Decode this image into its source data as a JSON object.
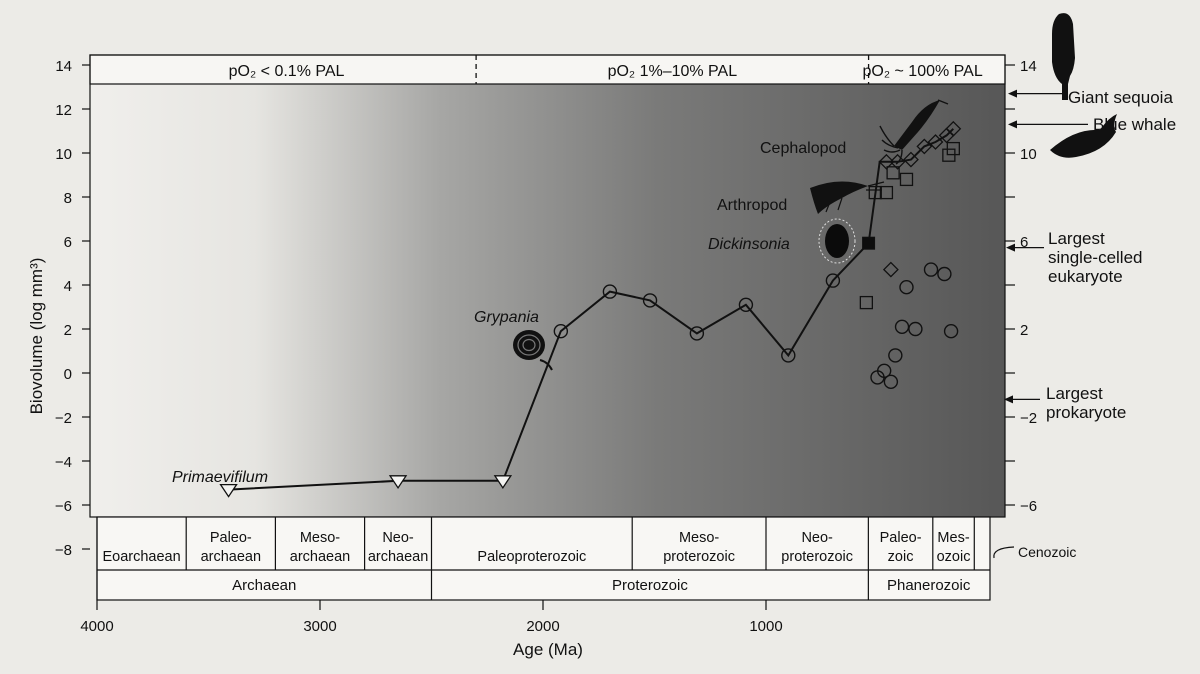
{
  "chart_data": {
    "type": "scatter",
    "title": "",
    "xlabel": "Age (Ma)",
    "ylabel": "Biovolume (log mm³)",
    "xlim": [
      4000,
      100
    ],
    "ylim": [
      -8,
      14
    ],
    "x_ticks": [
      "4000",
      "3000",
      "2000",
      "1000"
    ],
    "y_ticks": [
      "14",
      "12",
      "10",
      "8",
      "6",
      "4",
      "2",
      "0",
      "−2",
      "−4",
      "−6",
      "−8"
    ],
    "right_ticks": [
      "14",
      "10",
      "6",
      "2",
      "−2",
      "−6"
    ],
    "oxygen_bands": [
      {
        "label": "pO₂ < 0.1% PAL",
        "from": 4000,
        "to": 2300
      },
      {
        "label": "pO₂ 1%–10% PAL",
        "from": 2300,
        "to": 540
      },
      {
        "label": "pO₂ ~ 100% PAL",
        "from": 540,
        "to": 100
      }
    ],
    "series": [
      {
        "marker": "circle",
        "points": [
          [
            1920,
            1.9
          ],
          [
            1700,
            3.7
          ],
          [
            1520,
            3.3
          ],
          [
            1310,
            1.8
          ],
          [
            1090,
            3.1
          ],
          [
            900,
            0.8
          ],
          [
            700,
            4.2
          ],
          [
            370,
            3.9
          ],
          [
            260,
            4.7
          ],
          [
            200,
            4.5
          ],
          [
            170,
            1.9
          ],
          [
            390,
            2.1
          ],
          [
            330,
            2.0
          ],
          [
            420,
            0.8
          ],
          [
            500,
            -0.2
          ],
          [
            470,
            0.1
          ],
          [
            440,
            -0.4
          ]
        ]
      },
      {
        "marker": "triangle-down",
        "points": [
          [
            3410,
            -5.3
          ],
          [
            2650,
            -4.9
          ],
          [
            2180,
            -4.9
          ]
        ]
      },
      {
        "marker": "square-filled",
        "points": [
          [
            540,
            5.9
          ]
        ]
      },
      {
        "marker": "square",
        "points": [
          [
            550,
            3.2
          ],
          [
            510,
            8.2
          ],
          [
            460,
            8.2
          ],
          [
            430,
            9.1
          ],
          [
            370,
            8.8
          ],
          [
            180,
            9.9
          ],
          [
            160,
            10.2
          ]
        ]
      },
      {
        "marker": "diamond",
        "points": [
          [
            440,
            4.7
          ],
          [
            460,
            9.6
          ],
          [
            410,
            9.6
          ],
          [
            350,
            9.7
          ],
          [
            290,
            10.3
          ],
          [
            240,
            10.5
          ],
          [
            190,
            10.8
          ],
          [
            160,
            11.1
          ]
        ]
      }
    ],
    "trend_line": [
      [
        3410,
        -5.3
      ],
      [
        2650,
        -4.9
      ],
      [
        2180,
        -4.9
      ],
      [
        1920,
        1.9
      ],
      [
        1700,
        3.7
      ],
      [
        1520,
        3.3
      ],
      [
        1310,
        1.8
      ],
      [
        1090,
        3.1
      ],
      [
        900,
        0.8
      ],
      [
        700,
        4.2
      ],
      [
        540,
        5.9
      ],
      [
        490,
        9.6
      ],
      [
        460,
        9.6
      ],
      [
        410,
        9.6
      ],
      [
        350,
        9.7
      ],
      [
        290,
        10.3
      ],
      [
        240,
        10.5
      ],
      [
        190,
        10.8
      ],
      [
        160,
        11.1
      ]
    ],
    "organism_labels": [
      {
        "text": "Primaevifilum",
        "italic": true
      },
      {
        "text": "Grypania",
        "italic": true
      },
      {
        "text": "Dickinsonia",
        "italic": true
      },
      {
        "text": "Arthropod",
        "italic": false
      },
      {
        "text": "Cephalopod",
        "italic": false
      }
    ],
    "reference_labels": [
      {
        "lines": [
          "Giant sequoia"
        ],
        "value": 12.7
      },
      {
        "lines": [
          "Blue whale"
        ],
        "value": 11.3
      },
      {
        "lines": [
          "Largest",
          "single-celled",
          "eukaryote"
        ],
        "value": 5.7
      },
      {
        "lines": [
          "Largest",
          "prokaryote"
        ],
        "value": -1.2
      }
    ],
    "eras": [
      {
        "label": "Eoarchaean",
        "from": 4000,
        "to": 3600
      },
      {
        "label": "Paleo-|archaean",
        "from": 3600,
        "to": 3200
      },
      {
        "label": "Meso-|archaean",
        "from": 3200,
        "to": 2800
      },
      {
        "label": "Neo-|archaean",
        "from": 2800,
        "to": 2500
      },
      {
        "label": "Paleoproterozoic",
        "from": 2500,
        "to": 1600
      },
      {
        "label": "Meso-|proterozoic",
        "from": 1600,
        "to": 1000
      },
      {
        "label": "Neo-|proterozoic",
        "from": 1000,
        "to": 541
      },
      {
        "label": "Paleo-|zoic",
        "from": 541,
        "to": 252
      },
      {
        "label": "Mes-|ozoic",
        "from": 252,
        "to": 66
      },
      {
        "label": "",
        "from": 66,
        "to": 0
      }
    ],
    "cenozoic_label": "Cenozoic",
    "eons": [
      {
        "label": "Archaean",
        "from": 4000,
        "to": 2500
      },
      {
        "label": "Proterozoic",
        "from": 2500,
        "to": 541
      },
      {
        "label": "Phanerozoic",
        "from": 541,
        "to": 0
      }
    ],
    "colors": {
      "background_light": "#ededea",
      "background_dark": "#5b5b5b",
      "ink": "#111111"
    }
  }
}
